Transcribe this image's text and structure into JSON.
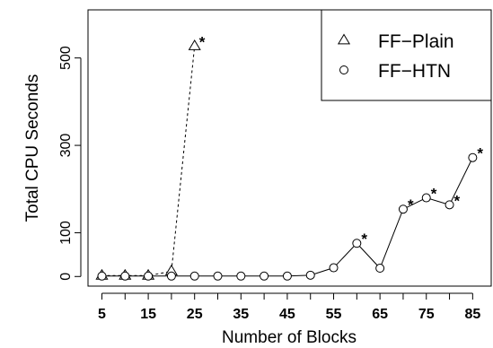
{
  "chart_data": {
    "type": "line",
    "xlabel": "Number of Blocks",
    "ylabel": "Total CPU Seconds",
    "xlim": [
      2,
      89
    ],
    "ylim": [
      -22,
      610
    ],
    "x_ticks": [
      5,
      10,
      15,
      20,
      25,
      30,
      35,
      40,
      45,
      50,
      55,
      60,
      65,
      70,
      75,
      80,
      85
    ],
    "x_tick_labels": [
      "5",
      "15",
      "25",
      "35",
      "45",
      "55",
      "65",
      "75",
      "85"
    ],
    "y_ticks": [
      0,
      100,
      300,
      500
    ],
    "y_tick_labels": [
      "0",
      "100",
      "300",
      "500"
    ],
    "grid": false,
    "legend_position": "top-right",
    "annotation_symbol": "*",
    "series": [
      {
        "name": "FF−Plain",
        "marker": "triangle",
        "line_style": "dashed",
        "x": [
          5,
          10,
          15,
          20,
          25
        ],
        "y": [
          2,
          2,
          2,
          12,
          527
        ],
        "starred": [
          false,
          false,
          false,
          false,
          true
        ]
      },
      {
        "name": "FF−HTN",
        "marker": "circle",
        "line_style": "solid",
        "x": [
          5,
          10,
          15,
          20,
          25,
          30,
          35,
          40,
          45,
          50,
          55,
          60,
          65,
          70,
          75,
          80,
          85
        ],
        "y": [
          1,
          1,
          1,
          1,
          1,
          1,
          1,
          1,
          1,
          3,
          20,
          76,
          19,
          154,
          180,
          164,
          272
        ],
        "starred": [
          false,
          false,
          false,
          false,
          false,
          false,
          false,
          false,
          false,
          false,
          false,
          true,
          false,
          true,
          true,
          true,
          true
        ]
      }
    ]
  }
}
